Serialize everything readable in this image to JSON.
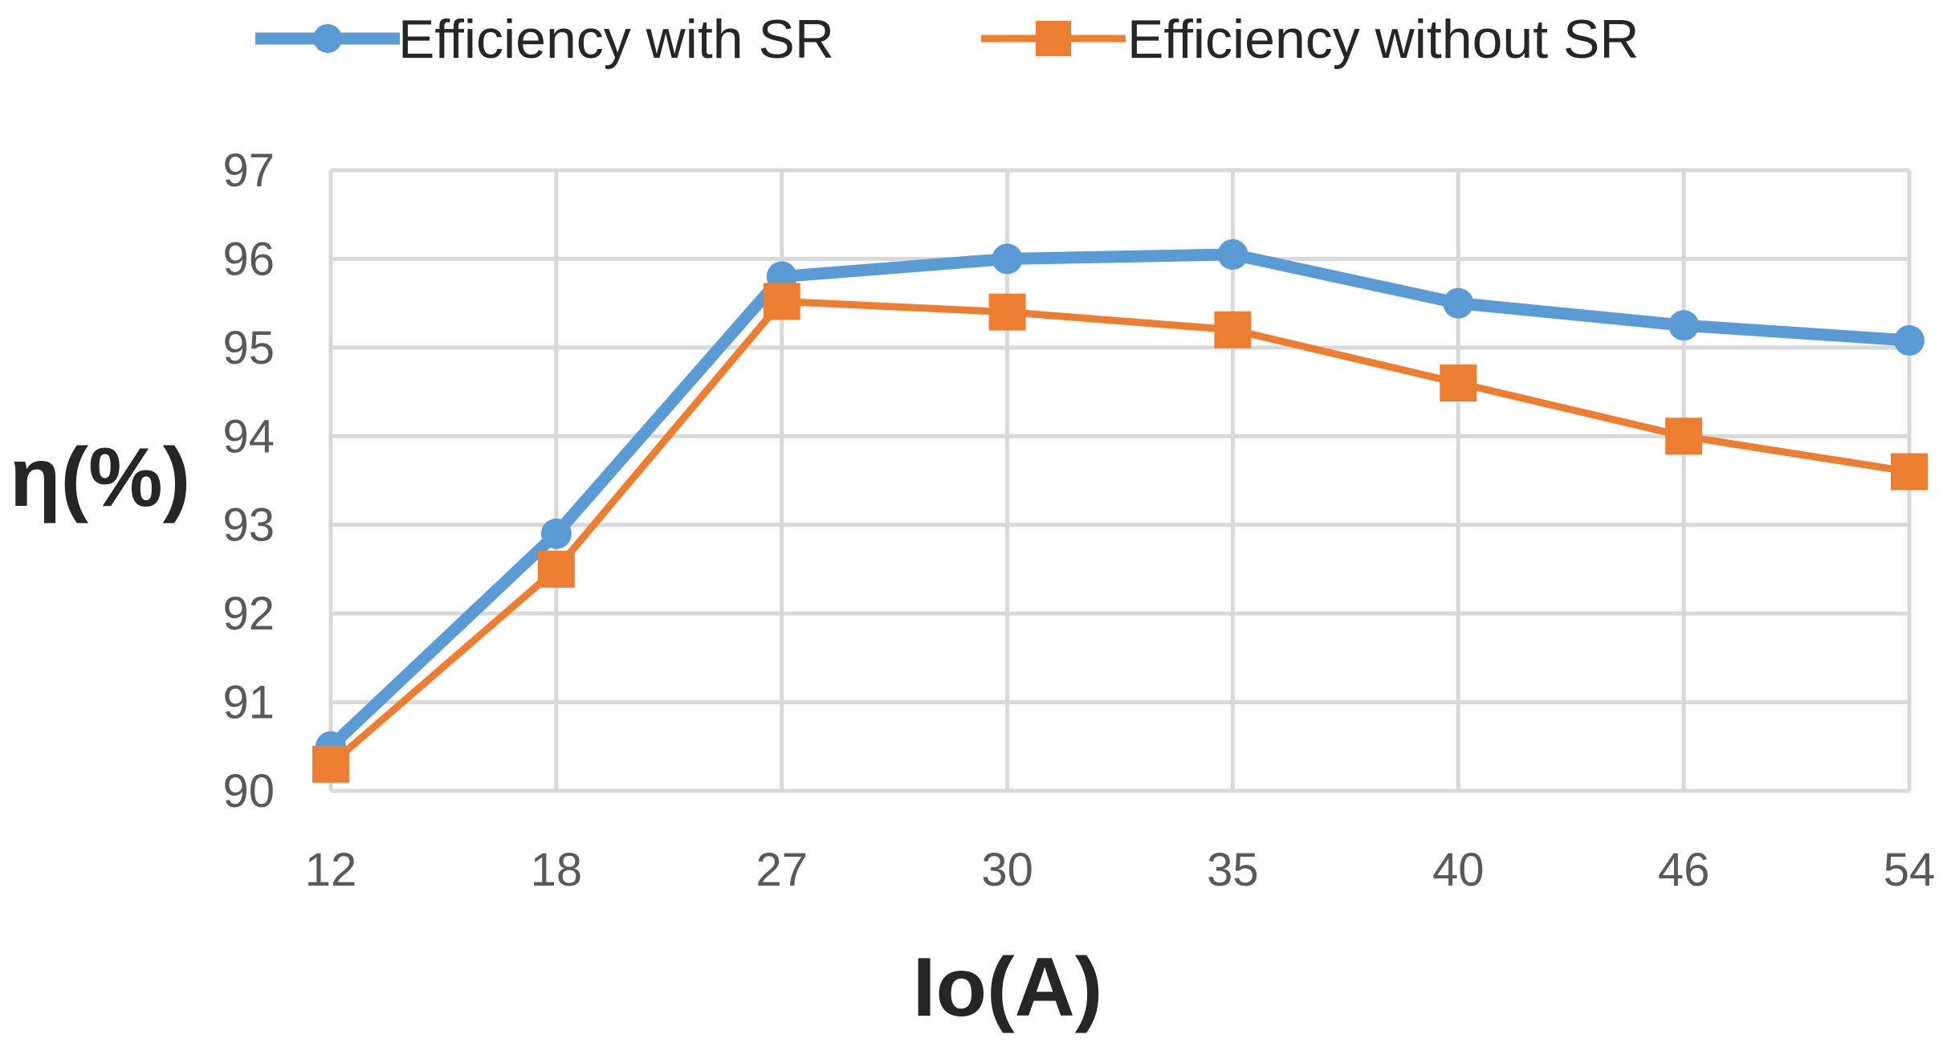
{
  "chart_data": {
    "type": "line",
    "title": "",
    "xlabel": "Io(A)",
    "ylabel": "η(%)",
    "categories": [
      "12",
      "18",
      "27",
      "30",
      "35",
      "40",
      "46",
      "54"
    ],
    "ylim": [
      90,
      97
    ],
    "yticks": [
      90,
      91,
      92,
      93,
      94,
      95,
      96,
      97
    ],
    "grid": true,
    "legend_position": "top",
    "series": [
      {
        "name": "Efficiency with SR",
        "values": [
          90.5,
          92.9,
          95.8,
          96.0,
          96.05,
          95.5,
          95.25,
          95.08
        ],
        "color": "#5b9bd5",
        "marker": "circle"
      },
      {
        "name": "Efficiency without SR",
        "values": [
          90.3,
          92.5,
          95.52,
          95.4,
          95.2,
          94.6,
          94.0,
          93.6
        ],
        "color": "#ed7d31",
        "marker": "square"
      }
    ]
  }
}
